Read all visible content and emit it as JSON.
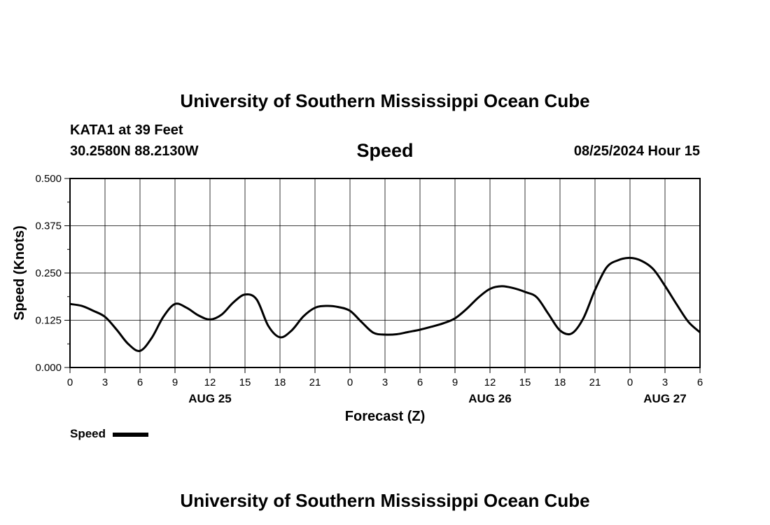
{
  "header": {
    "title": "University of Southern Mississippi Ocean Cube",
    "station": "KATA1 at 39 Feet",
    "position": "30.2580N  88.2130W",
    "date": "08/25/2024 Hour 15",
    "footer_title": "University of Southern Mississippi Ocean Cube"
  },
  "legend": {
    "label": "Speed"
  },
  "colors": {
    "line": "#000000",
    "grid": "#000000"
  },
  "chart_data": {
    "type": "line",
    "title": "Speed",
    "xlabel": "Forecast (Z)",
    "ylabel": "Speed (Knots)",
    "ylim": [
      0,
      0.5
    ],
    "yticks": [
      "0.000",
      "0.125",
      "0.250",
      "0.375",
      "0.500"
    ],
    "xticks": [
      "0",
      "3",
      "6",
      "9",
      "12",
      "15",
      "18",
      "21",
      "0",
      "3",
      "6",
      "9",
      "12",
      "15",
      "18",
      "21",
      "0",
      "3",
      "6"
    ],
    "date_labels": [
      {
        "hour": 12,
        "label": "AUG 25"
      },
      {
        "hour": 36,
        "label": "AUG 26"
      },
      {
        "hour": 51,
        "label": "AUG 27"
      }
    ],
    "grid": true,
    "legend_position": "bottom-left",
    "x_hours": [
      0,
      1,
      2,
      3,
      4,
      5,
      6,
      7,
      8,
      9,
      10,
      11,
      12,
      13,
      14,
      15,
      16,
      17,
      18,
      19,
      20,
      21,
      22,
      23,
      24,
      25,
      26,
      27,
      28,
      29,
      30,
      31,
      32,
      33,
      34,
      35,
      36,
      37,
      38,
      39,
      40,
      41,
      42,
      43,
      44,
      45,
      46,
      47,
      48,
      49,
      50,
      51,
      52,
      53,
      54
    ],
    "series": [
      {
        "name": "Speed",
        "values": [
          0.168,
          0.163,
          0.15,
          0.134,
          0.1,
          0.062,
          0.044,
          0.078,
          0.134,
          0.168,
          0.158,
          0.138,
          0.127,
          0.14,
          0.172,
          0.193,
          0.18,
          0.11,
          0.08,
          0.098,
          0.135,
          0.158,
          0.163,
          0.16,
          0.15,
          0.12,
          0.092,
          0.087,
          0.088,
          0.094,
          0.1,
          0.108,
          0.117,
          0.13,
          0.155,
          0.185,
          0.208,
          0.215,
          0.21,
          0.2,
          0.186,
          0.142,
          0.098,
          0.09,
          0.13,
          0.205,
          0.265,
          0.284,
          0.29,
          0.282,
          0.26,
          0.216,
          0.167,
          0.121,
          0.093
        ]
      }
    ]
  }
}
